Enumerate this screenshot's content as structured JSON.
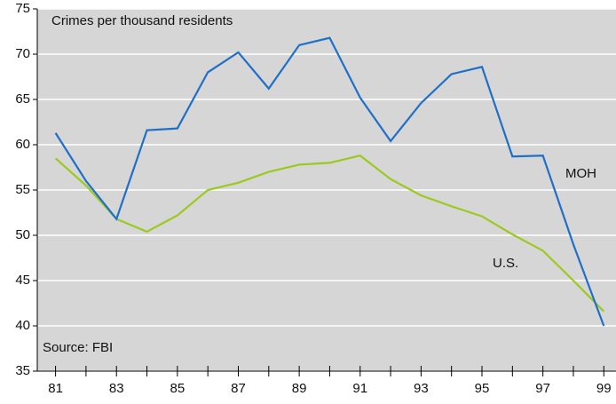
{
  "chart_data": {
    "type": "line",
    "title": "Crimes per thousand residents",
    "annotations": [
      "Source: FBI"
    ],
    "x": [
      81,
      82,
      83,
      84,
      85,
      86,
      87,
      88,
      89,
      90,
      91,
      92,
      93,
      94,
      95,
      96,
      97,
      98,
      99
    ],
    "series": [
      {
        "name": "MOH",
        "color": "#1f6fc9",
        "values": [
          61.3,
          56,
          51.8,
          61.6,
          61.8,
          68,
          70.2,
          66.2,
          71,
          71.8,
          65.2,
          60.4,
          64.6,
          67.8,
          68.6,
          58.7,
          58.8,
          49,
          40
        ]
      },
      {
        "name": "U.S.",
        "color": "#9cc91e",
        "values": [
          58.5,
          55.5,
          51.8,
          50.4,
          52.2,
          55,
          55.8,
          57,
          57.8,
          58,
          58.8,
          56.2,
          54.4,
          53.2,
          52.1,
          50.1,
          48.3,
          45,
          41.6
        ]
      }
    ],
    "xlim": [
      80.4,
      99.4
    ],
    "xticks": [
      81,
      83,
      85,
      87,
      89,
      91,
      93,
      95,
      97,
      99
    ],
    "minor_xticks": [
      82,
      84,
      86,
      88,
      90,
      92,
      94,
      96,
      98
    ],
    "ylim": [
      35,
      75
    ],
    "yticks": [
      35,
      40,
      45,
      50,
      55,
      60,
      65,
      70,
      75
    ],
    "grid": true
  }
}
